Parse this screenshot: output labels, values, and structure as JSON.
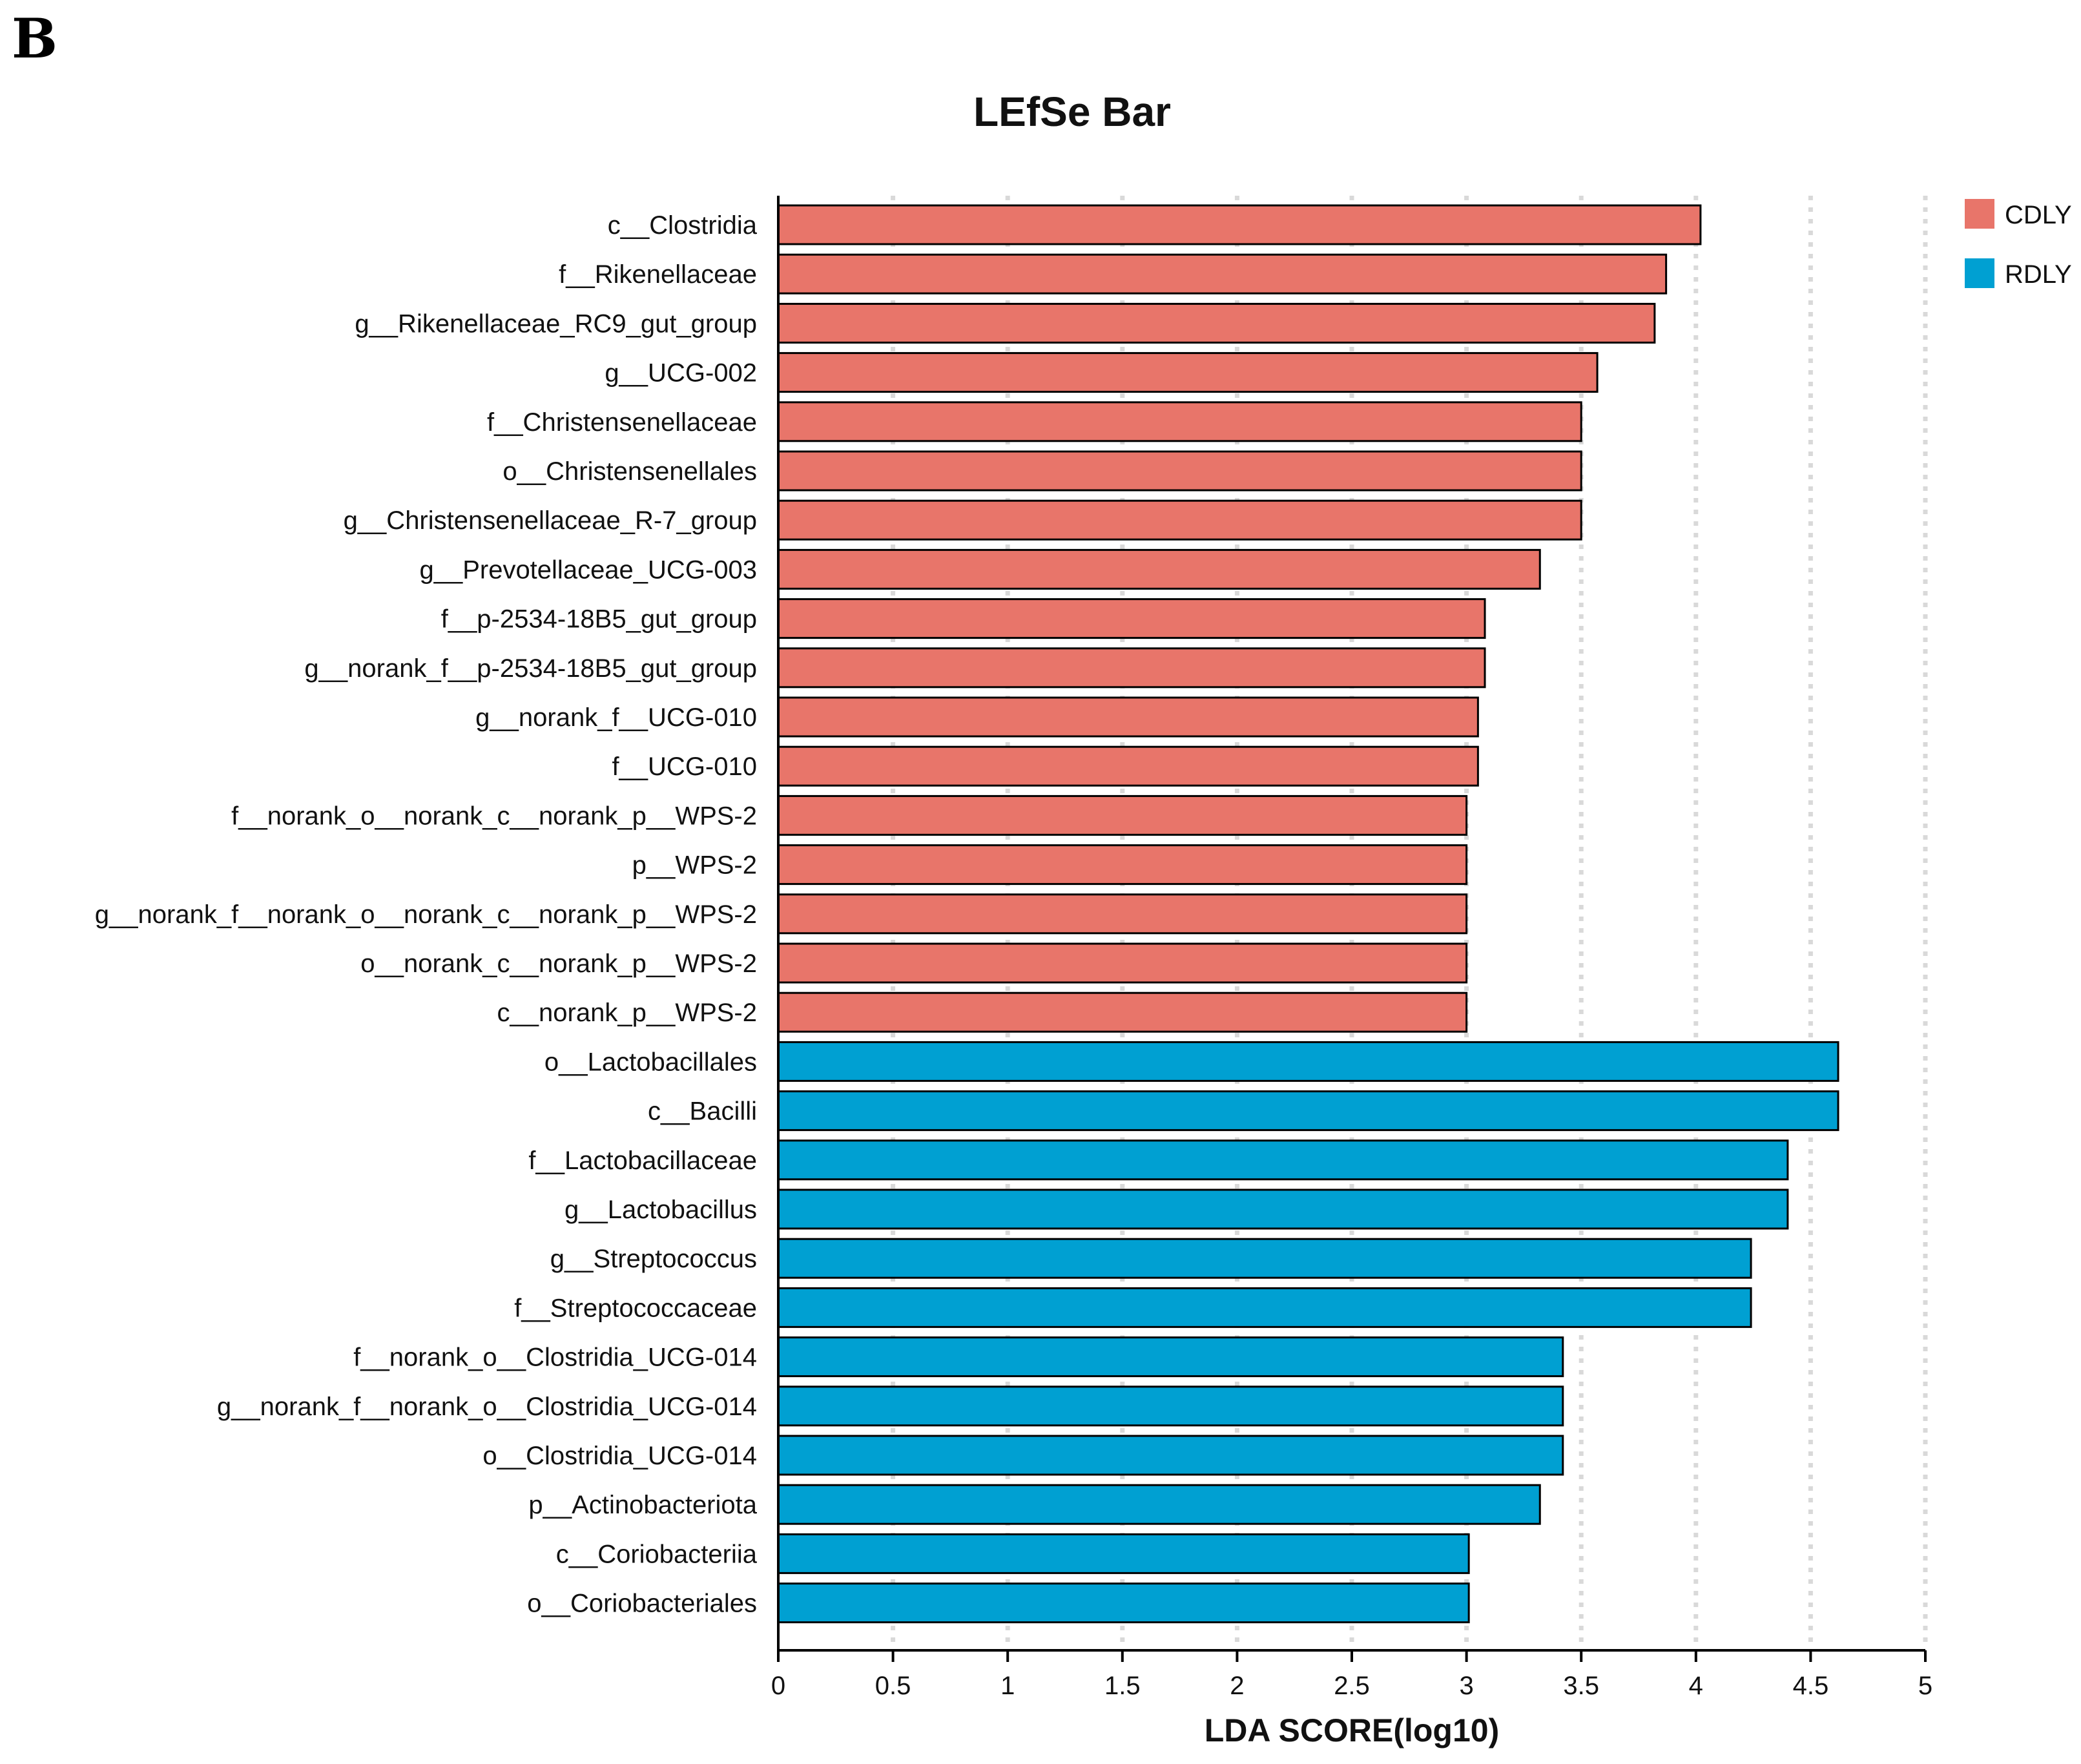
{
  "panel_label": "B",
  "chart_data": {
    "type": "bar",
    "orientation": "horizontal",
    "title": "LEfSe Bar",
    "xlabel": "LDA SCORE(log10)",
    "ylabel": "",
    "xlim": [
      0,
      5
    ],
    "xticks": [
      0,
      0.5,
      1,
      1.5,
      2,
      2.5,
      3,
      3.5,
      4,
      4.5,
      5
    ],
    "xtick_labels": [
      "0",
      "0.5",
      "1",
      "1.5",
      "2",
      "2.5",
      "3",
      "3.5",
      "4",
      "4.5",
      "5"
    ],
    "grid": "vertical dotted",
    "legend": {
      "position": "top-right",
      "entries": [
        {
          "name": "CDLY",
          "color": "#e8756a"
        },
        {
          "name": "RDLY",
          "color": "#00a0d2"
        }
      ]
    },
    "bars": [
      {
        "label": "c__Clostridia",
        "value": 4.02,
        "group": "CDLY"
      },
      {
        "label": "f__Rikenellaceae",
        "value": 3.87,
        "group": "CDLY"
      },
      {
        "label": "g__Rikenellaceae_RC9_gut_group",
        "value": 3.82,
        "group": "CDLY"
      },
      {
        "label": "g__UCG-002",
        "value": 3.57,
        "group": "CDLY"
      },
      {
        "label": "f__Christensenellaceae",
        "value": 3.5,
        "group": "CDLY"
      },
      {
        "label": "o__Christensenellales",
        "value": 3.5,
        "group": "CDLY"
      },
      {
        "label": "g__Christensenellaceae_R-7_group",
        "value": 3.5,
        "group": "CDLY"
      },
      {
        "label": "g__Prevotellaceae_UCG-003",
        "value": 3.32,
        "group": "CDLY"
      },
      {
        "label": "f__p-2534-18B5_gut_group",
        "value": 3.08,
        "group": "CDLY"
      },
      {
        "label": "g__norank_f__p-2534-18B5_gut_group",
        "value": 3.08,
        "group": "CDLY"
      },
      {
        "label": "g__norank_f__UCG-010",
        "value": 3.05,
        "group": "CDLY"
      },
      {
        "label": "f__UCG-010",
        "value": 3.05,
        "group": "CDLY"
      },
      {
        "label": "f__norank_o__norank_c__norank_p__WPS-2",
        "value": 3.0,
        "group": "CDLY"
      },
      {
        "label": "p__WPS-2",
        "value": 3.0,
        "group": "CDLY"
      },
      {
        "label": "g__norank_f__norank_o__norank_c__norank_p__WPS-2",
        "value": 3.0,
        "group": "CDLY"
      },
      {
        "label": "o__norank_c__norank_p__WPS-2",
        "value": 3.0,
        "group": "CDLY"
      },
      {
        "label": "c__norank_p__WPS-2",
        "value": 3.0,
        "group": "CDLY"
      },
      {
        "label": "o__Lactobacillales",
        "value": 4.62,
        "group": "RDLY"
      },
      {
        "label": "c__Bacilli",
        "value": 4.62,
        "group": "RDLY"
      },
      {
        "label": "f__Lactobacillaceae",
        "value": 4.4,
        "group": "RDLY"
      },
      {
        "label": "g__Lactobacillus",
        "value": 4.4,
        "group": "RDLY"
      },
      {
        "label": "g__Streptococcus",
        "value": 4.24,
        "group": "RDLY"
      },
      {
        "label": "f__Streptococcaceae",
        "value": 4.24,
        "group": "RDLY"
      },
      {
        "label": "f__norank_o__Clostridia_UCG-014",
        "value": 3.42,
        "group": "RDLY"
      },
      {
        "label": "g__norank_f__norank_o__Clostridia_UCG-014",
        "value": 3.42,
        "group": "RDLY"
      },
      {
        "label": "o__Clostridia_UCG-014",
        "value": 3.42,
        "group": "RDLY"
      },
      {
        "label": "p__Actinobacteriota",
        "value": 3.32,
        "group": "RDLY"
      },
      {
        "label": "c__Coriobacteriia",
        "value": 3.01,
        "group": "RDLY"
      },
      {
        "label": "o__Coriobacteriales",
        "value": 3.01,
        "group": "RDLY"
      }
    ]
  }
}
